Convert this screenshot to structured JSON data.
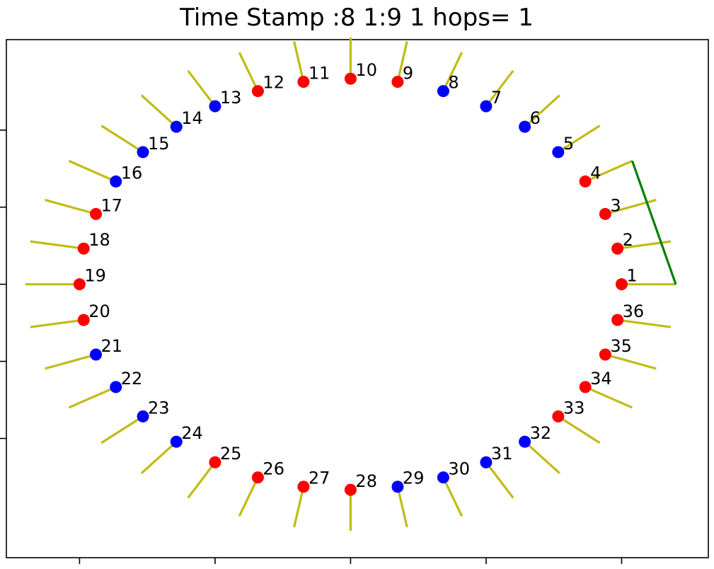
{
  "chart_data": {
    "type": "scatter",
    "title": "Time Stamp :8 1:9 1 hops= 1",
    "xlabel": "",
    "ylabel": "",
    "xlim": [
      -1.27,
      1.32
    ],
    "ylim": [
      -1.33,
      1.19
    ],
    "xticks": [
      -1.0,
      -0.5,
      0.0,
      0.5,
      1.0
    ],
    "yticks": [
      -0.75,
      -0.375,
      0.0,
      0.375,
      0.75
    ],
    "show_tick_labels": false,
    "grid": false,
    "colors": {
      "red": "#ff0000",
      "blue": "#0000ff",
      "antenna": "#c0bc14",
      "link": "#008000"
    },
    "nodes": [
      {
        "id": 1,
        "label": "1",
        "angle_deg": 0,
        "color": "red"
      },
      {
        "id": 2,
        "label": "2",
        "angle_deg": 10,
        "color": "red"
      },
      {
        "id": 3,
        "label": "3",
        "angle_deg": 20,
        "color": "red"
      },
      {
        "id": 4,
        "label": "4",
        "angle_deg": 30,
        "color": "red"
      },
      {
        "id": 5,
        "label": "5",
        "angle_deg": 40,
        "color": "blue"
      },
      {
        "id": 6,
        "label": "6",
        "angle_deg": 50,
        "color": "blue"
      },
      {
        "id": 7,
        "label": "7",
        "angle_deg": 60,
        "color": "blue"
      },
      {
        "id": 8,
        "label": "8",
        "angle_deg": 70,
        "color": "blue"
      },
      {
        "id": 9,
        "label": "9",
        "angle_deg": 80,
        "color": "red"
      },
      {
        "id": 10,
        "label": "10",
        "angle_deg": 90,
        "color": "red"
      },
      {
        "id": 11,
        "label": "11",
        "angle_deg": 100,
        "color": "red"
      },
      {
        "id": 12,
        "label": "12",
        "angle_deg": 110,
        "color": "red"
      },
      {
        "id": 13,
        "label": "13",
        "angle_deg": 120,
        "color": "blue"
      },
      {
        "id": 14,
        "label": "14",
        "angle_deg": 130,
        "color": "blue"
      },
      {
        "id": 15,
        "label": "15",
        "angle_deg": 140,
        "color": "blue"
      },
      {
        "id": 16,
        "label": "16",
        "angle_deg": 150,
        "color": "blue"
      },
      {
        "id": 17,
        "label": "17",
        "angle_deg": 160,
        "color": "red"
      },
      {
        "id": 18,
        "label": "18",
        "angle_deg": 170,
        "color": "red"
      },
      {
        "id": 19,
        "label": "19",
        "angle_deg": 180,
        "color": "red"
      },
      {
        "id": 20,
        "label": "20",
        "angle_deg": 190,
        "color": "red"
      },
      {
        "id": 21,
        "label": "21",
        "angle_deg": 200,
        "color": "blue"
      },
      {
        "id": 22,
        "label": "22",
        "angle_deg": 210,
        "color": "blue"
      },
      {
        "id": 23,
        "label": "23",
        "angle_deg": 220,
        "color": "blue"
      },
      {
        "id": 24,
        "label": "24",
        "angle_deg": 230,
        "color": "blue"
      },
      {
        "id": 25,
        "label": "25",
        "angle_deg": 240,
        "color": "red"
      },
      {
        "id": 26,
        "label": "26",
        "angle_deg": 250,
        "color": "red"
      },
      {
        "id": 27,
        "label": "27",
        "angle_deg": 260,
        "color": "red"
      },
      {
        "id": 28,
        "label": "28",
        "angle_deg": 270,
        "color": "red"
      },
      {
        "id": 29,
        "label": "29",
        "angle_deg": 280,
        "color": "blue"
      },
      {
        "id": 30,
        "label": "30",
        "angle_deg": 290,
        "color": "blue"
      },
      {
        "id": 31,
        "label": "31",
        "angle_deg": 300,
        "color": "blue"
      },
      {
        "id": 32,
        "label": "32",
        "angle_deg": 310,
        "color": "blue"
      },
      {
        "id": 33,
        "label": "33",
        "angle_deg": 320,
        "color": "red"
      },
      {
        "id": 34,
        "label": "34",
        "angle_deg": 330,
        "color": "red"
      },
      {
        "id": 35,
        "label": "35",
        "angle_deg": 340,
        "color": "red"
      },
      {
        "id": 36,
        "label": "36",
        "angle_deg": 350,
        "color": "red"
      }
    ],
    "node_radius": 1.0,
    "antenna_inner_radius": 1.0,
    "antenna_outer_radius": 1.2,
    "links": [
      {
        "from_angle_deg": 0,
        "to_angle_deg": 30,
        "radius": 1.2,
        "color": "link"
      }
    ]
  }
}
